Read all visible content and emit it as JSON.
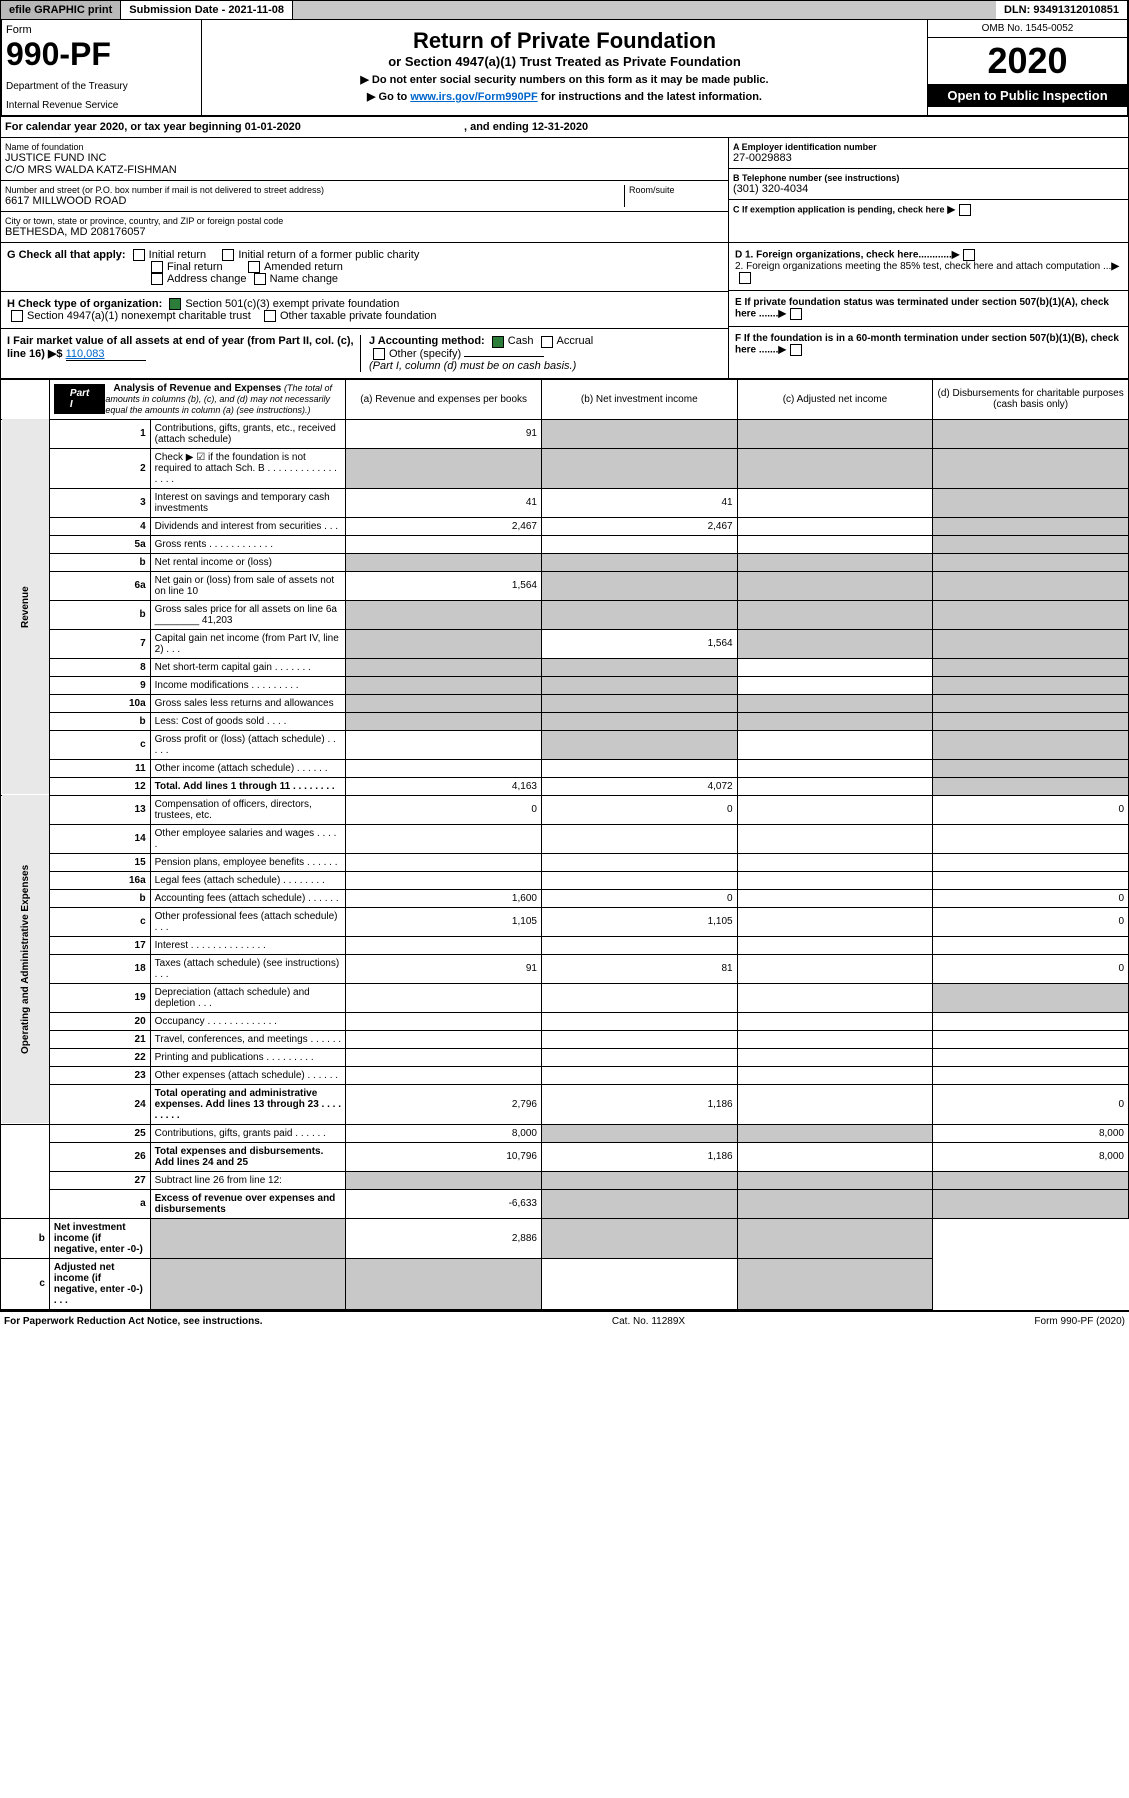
{
  "topbar": {
    "efile": "efile GRAPHIC print",
    "subdate_label": "Submission Date - 2021-11-08",
    "dln": "DLN: 93491312010851"
  },
  "header": {
    "form_word": "Form",
    "form_num": "990-PF",
    "dept": "Department of the Treasury",
    "irs": "Internal Revenue Service",
    "title": "Return of Private Foundation",
    "subtitle": "or Section 4947(a)(1) Trust Treated as Private Foundation",
    "instr1": "▶ Do not enter social security numbers on this form as it may be made public.",
    "instr2_pre": "▶ Go to ",
    "instr2_link": "www.irs.gov/Form990PF",
    "instr2_post": " for instructions and the latest information.",
    "omb": "OMB No. 1545-0052",
    "year": "2020",
    "inspect": "Open to Public Inspection"
  },
  "calyear": {
    "text": "For calendar year 2020, or tax year beginning 01-01-2020",
    "ending": ", and ending 12-31-2020"
  },
  "entity": {
    "name_label": "Name of foundation",
    "name1": "JUSTICE FUND INC",
    "name2": "C/O MRS WALDA KATZ-FISHMAN",
    "addr_label": "Number and street (or P.O. box number if mail is not delivered to street address)",
    "addr": "6617 MILLWOOD ROAD",
    "room_label": "Room/suite",
    "city_label": "City or town, state or province, country, and ZIP or foreign postal code",
    "city": "BETHESDA, MD  208176057",
    "ein_label": "A Employer identification number",
    "ein": "27-0029883",
    "phone_label": "B Telephone number (see instructions)",
    "phone": "(301) 320-4034",
    "c_label": "C If exemption application is pending, check here"
  },
  "checks": {
    "g_label": "G Check all that apply:",
    "g1": "Initial return",
    "g2": "Initial return of a former public charity",
    "g3": "Final return",
    "g4": "Amended return",
    "g5": "Address change",
    "g6": "Name change",
    "h_label": "H Check type of organization:",
    "h1": "Section 501(c)(3) exempt private foundation",
    "h2": "Section 4947(a)(1) nonexempt charitable trust",
    "h3": "Other taxable private foundation",
    "i_label": "I Fair market value of all assets at end of year (from Part II, col. (c), line 16) ▶$ ",
    "i_val": "110,083",
    "j_label": "J Accounting method:",
    "j1": "Cash",
    "j2": "Accrual",
    "j3": "Other (specify)",
    "j_note": "(Part I, column (d) must be on cash basis.)",
    "d1": "D 1. Foreign organizations, check here............",
    "d2": "2. Foreign organizations meeting the 85% test, check here and attach computation ...",
    "e": "E  If private foundation status was terminated under section 507(b)(1)(A), check here .......",
    "f": "F  If the foundation is in a 60-month termination under section 507(b)(1)(B), check here ......."
  },
  "part1": {
    "label": "Part I",
    "title": "Analysis of Revenue and Expenses",
    "title_note": " (The total of amounts in columns (b), (c), and (d) may not necessarily equal the amounts in column (a) (see instructions).)",
    "col_a": "(a) Revenue and expenses per books",
    "col_b": "(b) Net investment income",
    "col_c": "(c) Adjusted net income",
    "col_d": "(d) Disbursements for charitable purposes (cash basis only)"
  },
  "revenue_label": "Revenue",
  "expense_label": "Operating and Administrative Expenses",
  "rows": [
    {
      "n": "1",
      "d": "Contributions, gifts, grants, etc., received (attach schedule)",
      "a": "91",
      "bs": true,
      "cs": true,
      "ds": true
    },
    {
      "n": "2",
      "d": "Check ▶ ☑ if the foundation is not required to attach Sch. B  .  .  .  .  .  .  .  .  .  .  .  .  .  .  .  .  .",
      "as": true,
      "bs": true,
      "cs": true,
      "ds": true
    },
    {
      "n": "3",
      "d": "Interest on savings and temporary cash investments",
      "a": "41",
      "b": "41",
      "ds": true
    },
    {
      "n": "4",
      "d": "Dividends and interest from securities  .  .  .",
      "a": "2,467",
      "b": "2,467",
      "ds": true
    },
    {
      "n": "5a",
      "d": "Gross rents  .  .  .  .  .  .  .  .  .  .  .  .",
      "ds": true
    },
    {
      "n": "b",
      "d": "Net rental income or (loss)  ",
      "as": true,
      "bs": true,
      "cs": true,
      "ds": true
    },
    {
      "n": "6a",
      "d": "Net gain or (loss) from sale of assets not on line 10",
      "a": "1,564",
      "bs": true,
      "cs": true,
      "ds": true
    },
    {
      "n": "b",
      "d": "Gross sales price for all assets on line 6a ________ 41,203",
      "as": true,
      "bs": true,
      "cs": true,
      "ds": true
    },
    {
      "n": "7",
      "d": "Capital gain net income (from Part IV, line 2)  .  .  .",
      "as": true,
      "b": "1,564",
      "cs": true,
      "ds": true
    },
    {
      "n": "8",
      "d": "Net short-term capital gain  .  .  .  .  .  .  .",
      "as": true,
      "bs": true,
      "ds": true
    },
    {
      "n": "9",
      "d": "Income modifications  .  .  .  .  .  .  .  .  .",
      "as": true,
      "bs": true,
      "ds": true
    },
    {
      "n": "10a",
      "d": "Gross sales less returns and allowances",
      "as": true,
      "bs": true,
      "cs": true,
      "ds": true
    },
    {
      "n": "b",
      "d": "Less: Cost of goods sold  .  .  .  .",
      "as": true,
      "bs": true,
      "cs": true,
      "ds": true
    },
    {
      "n": "c",
      "d": "Gross profit or (loss) (attach schedule)  .  .  .  .  .",
      "bs": true,
      "ds": true
    },
    {
      "n": "11",
      "d": "Other income (attach schedule)  .  .  .  .  .  .",
      "ds": true
    },
    {
      "n": "12",
      "d": "Total. Add lines 1 through 11  .  .  .  .  .  .  .  .",
      "bold": true,
      "a": "4,163",
      "b": "4,072",
      "ds": true
    },
    {
      "n": "13",
      "d": "Compensation of officers, directors, trustees, etc.",
      "a": "0",
      "b": "0",
      "d_": "0"
    },
    {
      "n": "14",
      "d": "Other employee salaries and wages  .  .  .  .  ."
    },
    {
      "n": "15",
      "d": "Pension plans, employee benefits  .  .  .  .  .  ."
    },
    {
      "n": "16a",
      "d": "Legal fees (attach schedule)  .  .  .  .  .  .  .  ."
    },
    {
      "n": "b",
      "d": "Accounting fees (attach schedule)  .  .  .  .  .  .",
      "a": "1,600",
      "b": "0",
      "d_": "0"
    },
    {
      "n": "c",
      "d": "Other professional fees (attach schedule)  .  .  .",
      "a": "1,105",
      "b": "1,105",
      "d_": "0"
    },
    {
      "n": "17",
      "d": "Interest  .  .  .  .  .  .  .  .  .  .  .  .  .  ."
    },
    {
      "n": "18",
      "d": "Taxes (attach schedule) (see instructions)  .  .  .",
      "a": "91",
      "b": "81",
      "d_": "0"
    },
    {
      "n": "19",
      "d": "Depreciation (attach schedule) and depletion  .  .  .",
      "ds": true
    },
    {
      "n": "20",
      "d": "Occupancy  .  .  .  .  .  .  .  .  .  .  .  .  ."
    },
    {
      "n": "21",
      "d": "Travel, conferences, and meetings  .  .  .  .  .  ."
    },
    {
      "n": "22",
      "d": "Printing and publications  .  .  .  .  .  .  .  .  ."
    },
    {
      "n": "23",
      "d": "Other expenses (attach schedule)  .  .  .  .  .  ."
    },
    {
      "n": "24",
      "d": "Total operating and administrative expenses. Add lines 13 through 23  .  .  .  .  .  .  .  .  .",
      "bold": true,
      "a": "2,796",
      "b": "1,186",
      "d_": "0"
    },
    {
      "n": "25",
      "d": "Contributions, gifts, grants paid  .  .  .  .  .  .",
      "a": "8,000",
      "bs": true,
      "cs": true,
      "d_": "8,000"
    },
    {
      "n": "26",
      "d": "Total expenses and disbursements. Add lines 24 and 25",
      "bold": true,
      "a": "10,796",
      "b": "1,186",
      "d_": "8,000"
    },
    {
      "n": "27",
      "d": "Subtract line 26 from line 12:",
      "as": true,
      "bs": true,
      "cs": true,
      "ds": true
    },
    {
      "n": "a",
      "d": "Excess of revenue over expenses and disbursements",
      "bold": true,
      "a": "-6,633",
      "bs": true,
      "cs": true,
      "ds": true
    },
    {
      "n": "b",
      "d": "Net investment income (if negative, enter -0-)",
      "bold": true,
      "as": true,
      "b": "2,886",
      "cs": true,
      "ds": true
    },
    {
      "n": "c",
      "d": "Adjusted net income (if negative, enter -0-)  .  .  .",
      "bold": true,
      "as": true,
      "bs": true,
      "ds": true
    }
  ],
  "footer": {
    "left": "For Paperwork Reduction Act Notice, see instructions.",
    "mid": "Cat. No. 11289X",
    "right": "Form 990-PF (2020)"
  }
}
